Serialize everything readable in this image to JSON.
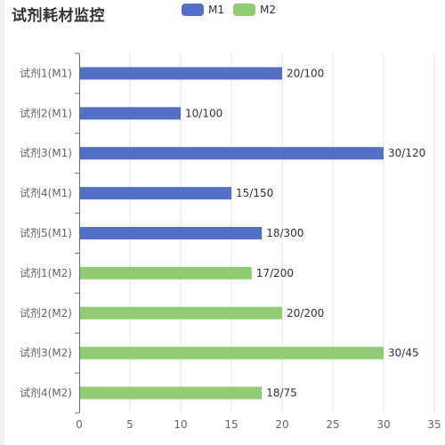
{
  "title": "试剂耗材监控",
  "legend": [
    {
      "name": "M1",
      "color": "#5470c6"
    },
    {
      "name": "M2",
      "color": "#91cc75"
    }
  ],
  "chart_data": {
    "type": "bar",
    "orientation": "horizontal",
    "title": "试剂耗材监控",
    "categories": [
      "试剂1(M1)",
      "试剂2(M1)",
      "试剂3(M1)",
      "试剂4(M1)",
      "试剂5(M1)",
      "试剂1(M2)",
      "试剂2(M2)",
      "试剂3(M2)",
      "试剂4(M2)"
    ],
    "values": [
      20,
      10,
      30,
      15,
      18,
      17,
      20,
      30,
      18
    ],
    "labels": [
      "20/100",
      "10/100",
      "30/120",
      "15/150",
      "18/300",
      "17/200",
      "20/200",
      "30/45",
      "18/75"
    ],
    "series_of_category": [
      "M1",
      "M1",
      "M1",
      "M1",
      "M1",
      "M2",
      "M2",
      "M2",
      "M2"
    ],
    "xlim": [
      0,
      35
    ],
    "xticks": [
      0,
      5,
      10,
      15,
      20,
      25,
      30,
      35
    ],
    "grid": true,
    "legend_position": "top"
  }
}
